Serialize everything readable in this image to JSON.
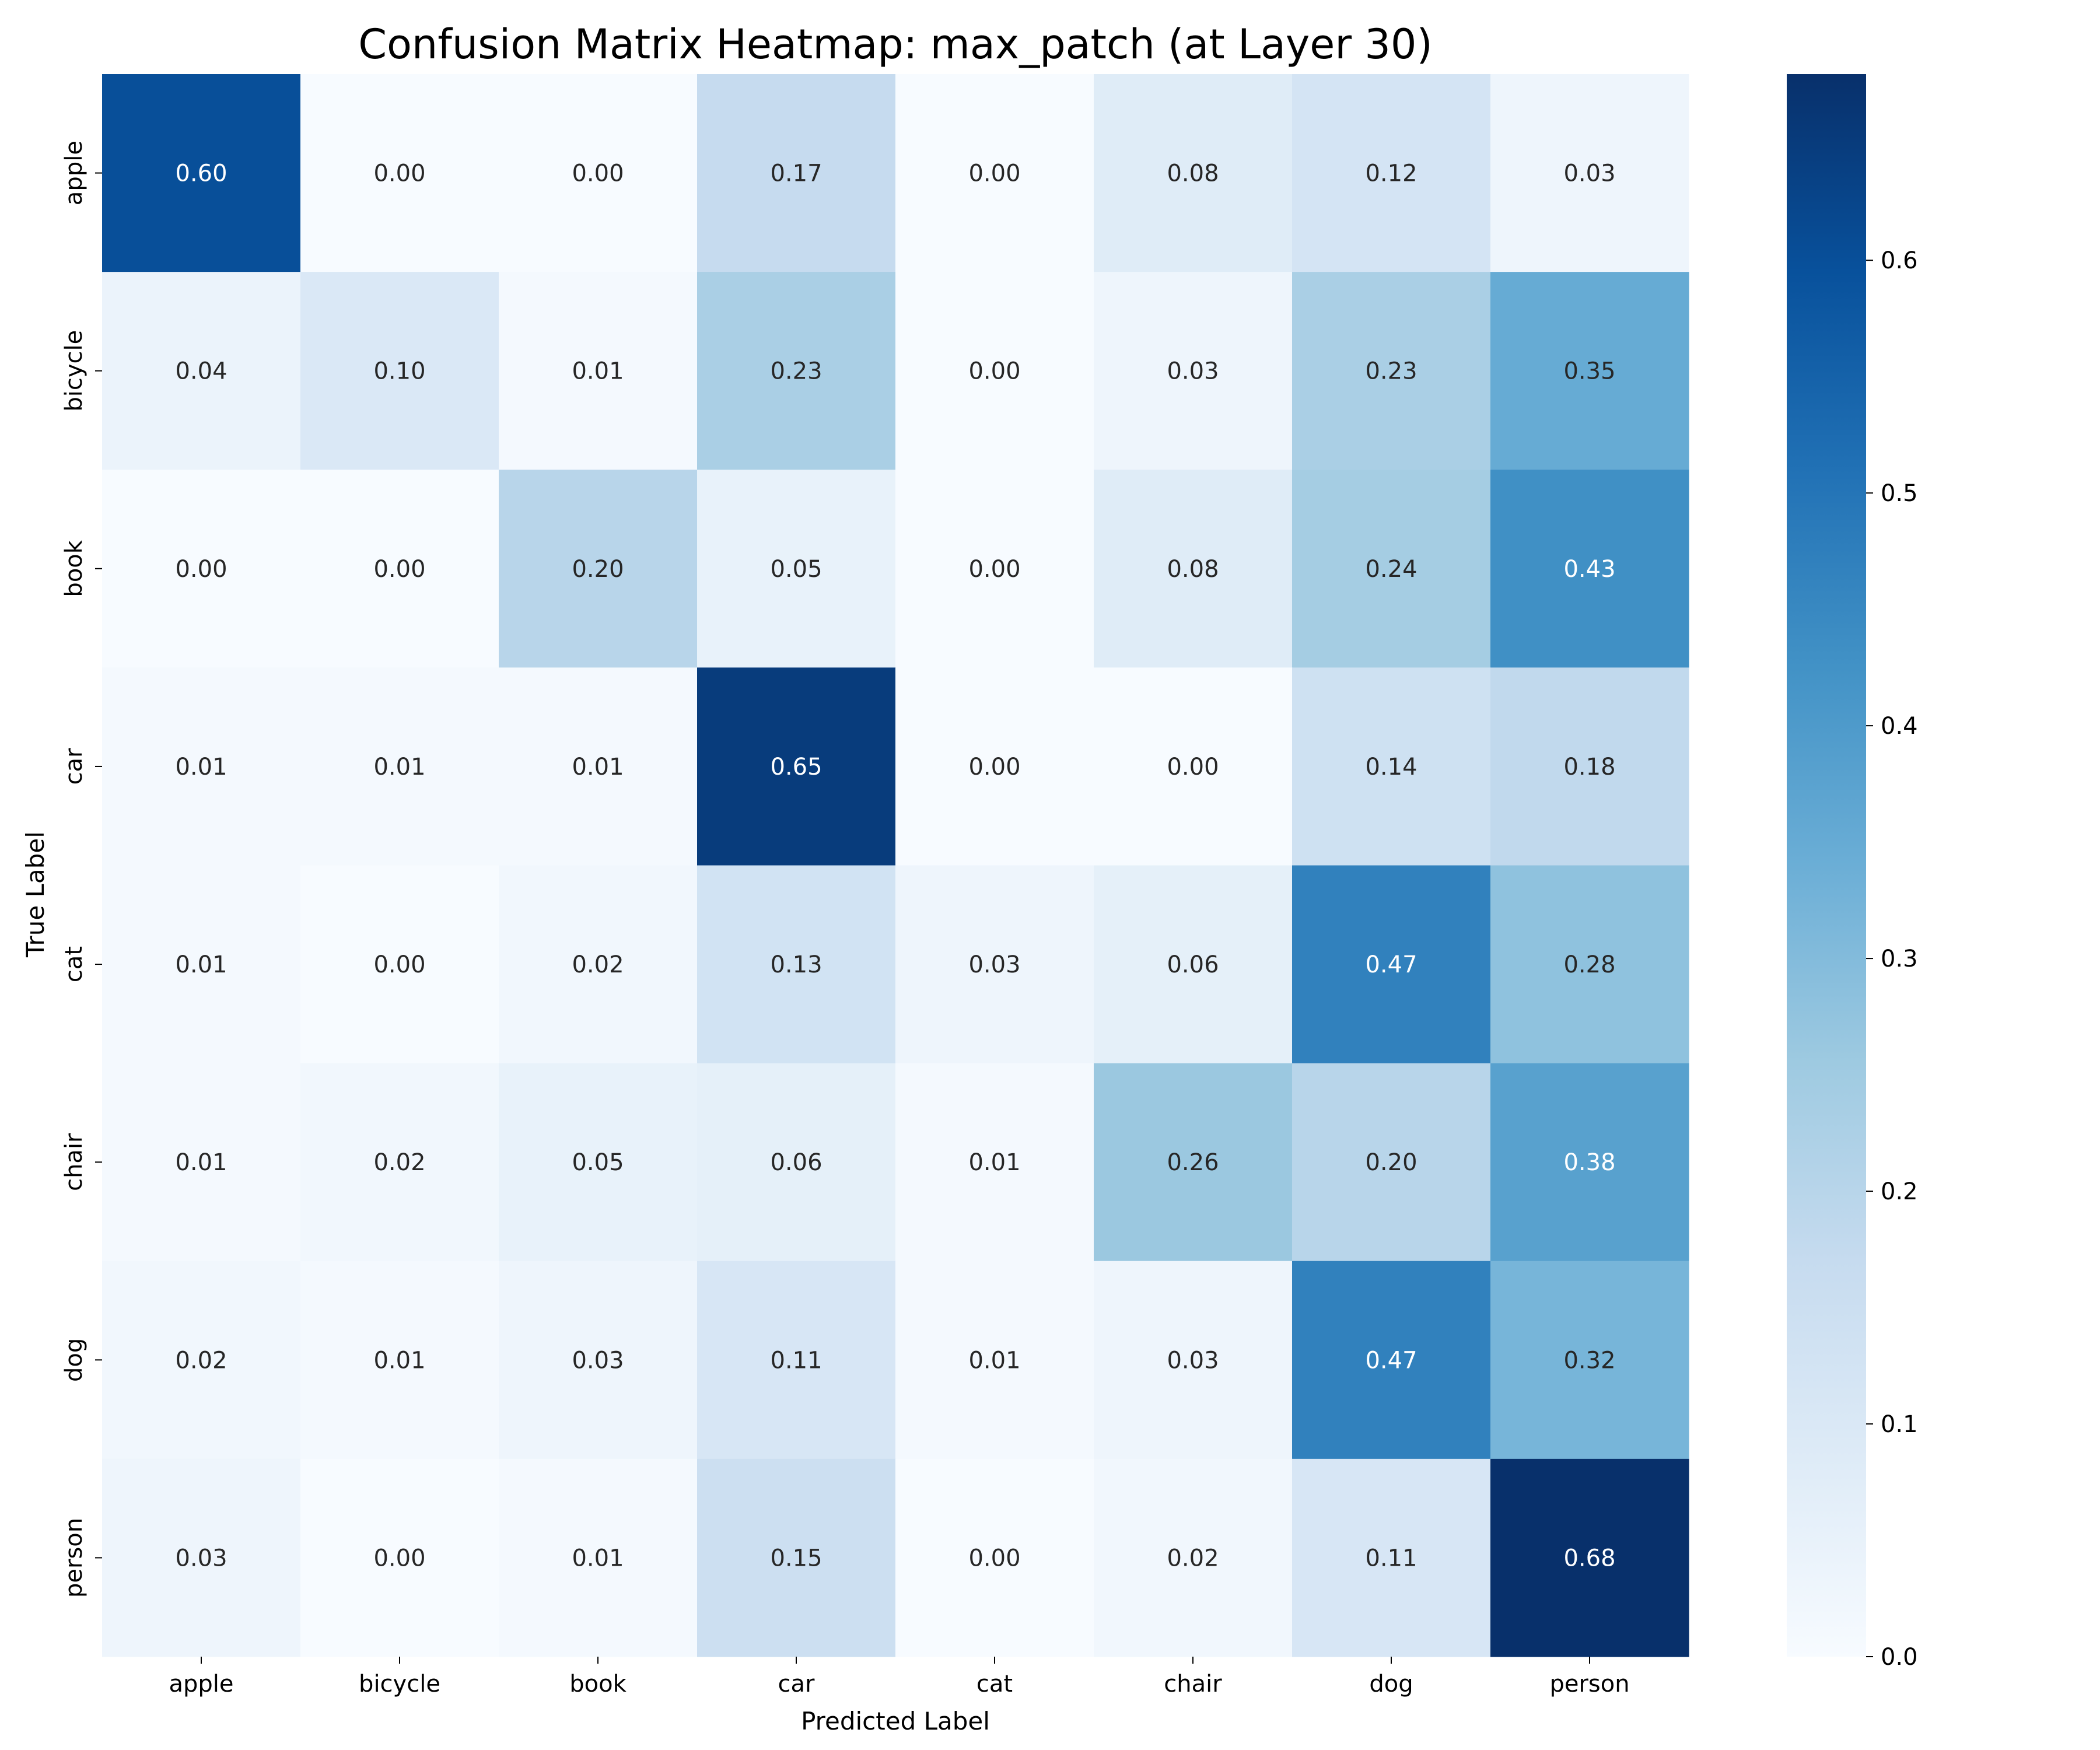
{
  "chart_data": {
    "type": "heatmap",
    "title": "Confusion Matrix Heatmap: max_patch (at Layer 30)",
    "xlabel": "Predicted Label",
    "ylabel": "True Label",
    "x_categories": [
      "apple",
      "bicycle",
      "book",
      "car",
      "cat",
      "chair",
      "dog",
      "person"
    ],
    "y_categories": [
      "apple",
      "bicycle",
      "book",
      "car",
      "cat",
      "chair",
      "dog",
      "person"
    ],
    "values": [
      [
        0.6,
        0.0,
        0.0,
        0.17,
        0.0,
        0.08,
        0.12,
        0.03
      ],
      [
        0.04,
        0.1,
        0.01,
        0.23,
        0.0,
        0.03,
        0.23,
        0.35
      ],
      [
        0.0,
        0.0,
        0.2,
        0.05,
        0.0,
        0.08,
        0.24,
        0.43
      ],
      [
        0.01,
        0.01,
        0.01,
        0.65,
        0.0,
        0.0,
        0.14,
        0.18
      ],
      [
        0.01,
        0.0,
        0.02,
        0.13,
        0.03,
        0.06,
        0.47,
        0.28
      ],
      [
        0.01,
        0.02,
        0.05,
        0.06,
        0.01,
        0.26,
        0.2,
        0.38
      ],
      [
        0.02,
        0.01,
        0.03,
        0.11,
        0.01,
        0.03,
        0.47,
        0.32
      ],
      [
        0.03,
        0.0,
        0.01,
        0.15,
        0.0,
        0.02,
        0.11,
        0.68
      ]
    ],
    "colormap": "Blues",
    "vmin": 0.0,
    "vmax": 0.68,
    "colorbar_ticks": [
      "0.0",
      "0.1",
      "0.2",
      "0.3",
      "0.4",
      "0.5",
      "0.6"
    ],
    "colorbar_tick_values": [
      0.0,
      0.1,
      0.2,
      0.3,
      0.4,
      0.5,
      0.6
    ],
    "grid": false,
    "legend": "colorbar-right"
  }
}
